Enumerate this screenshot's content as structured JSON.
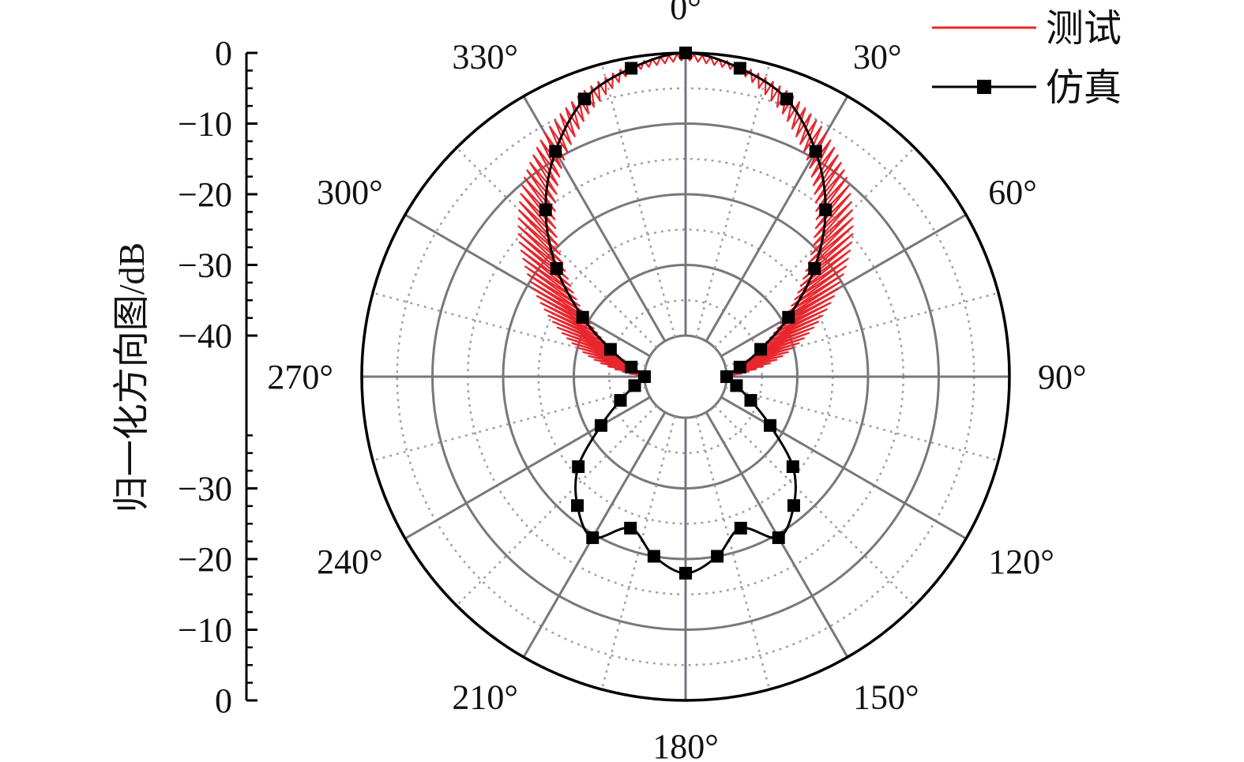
{
  "chart_data": {
    "type": "polar-line",
    "title": "",
    "radial_axis": {
      "label": "归一化方向图/dB",
      "range": [
        -40,
        0
      ],
      "ticks_top": [
        "0",
        "−10",
        "−20",
        "−30",
        "−40"
      ],
      "ticks_bottom": [
        "−30",
        "−20",
        "−10",
        "0"
      ],
      "grid": true
    },
    "angular_axis": {
      "zero_direction": "top",
      "direction": "clockwise",
      "ticks": [
        0,
        30,
        60,
        90,
        120,
        150,
        180,
        210,
        240,
        270,
        300,
        330
      ],
      "tick_labels": [
        "0°",
        "30°",
        "60°",
        "90°",
        "120°",
        "150°",
        "180°",
        "210°",
        "240°",
        "270°",
        "300°",
        "330°"
      ]
    },
    "legend": {
      "position": "top-right",
      "entries": [
        "测试",
        "仿真"
      ]
    },
    "series": [
      {
        "name": "测试",
        "color": "#e8262d",
        "style": "line",
        "note_pattern": "oscillating",
        "envelope_upper": [
          [
            270,
            -40
          ],
          [
            280,
            -33
          ],
          [
            290,
            -27
          ],
          [
            300,
            -21
          ],
          [
            310,
            -15
          ],
          [
            320,
            -10
          ],
          [
            330,
            -6
          ],
          [
            340,
            -3
          ],
          [
            350,
            -1
          ],
          [
            0,
            0
          ],
          [
            10,
            -1
          ],
          [
            20,
            -3
          ],
          [
            30,
            -6
          ],
          [
            40,
            -10
          ],
          [
            50,
            -15
          ],
          [
            60,
            -21
          ],
          [
            70,
            -27
          ],
          [
            80,
            -33
          ],
          [
            90,
            -40
          ]
        ],
        "envelope_lower": [
          [
            270,
            -40
          ],
          [
            280,
            -38
          ],
          [
            290,
            -35
          ],
          [
            300,
            -30
          ],
          [
            310,
            -24
          ],
          [
            320,
            -17
          ],
          [
            330,
            -11
          ],
          [
            340,
            -6
          ],
          [
            350,
            -2
          ],
          [
            0,
            -1
          ],
          [
            10,
            -2
          ],
          [
            20,
            -6
          ],
          [
            30,
            -11
          ],
          [
            40,
            -17
          ],
          [
            50,
            -24
          ],
          [
            60,
            -30
          ],
          [
            70,
            -35
          ],
          [
            80,
            -38
          ],
          [
            90,
            -40
          ]
        ]
      },
      {
        "name": "仿真",
        "color": "#000000",
        "style": "line-square-markers",
        "points": [
          [
            0,
            0
          ],
          [
            10,
            -1.5
          ],
          [
            20,
            -4
          ],
          [
            30,
            -9
          ],
          [
            40,
            -15
          ],
          [
            50,
            -22
          ],
          [
            60,
            -29
          ],
          [
            70,
            -34.5
          ],
          [
            80,
            -38
          ],
          [
            90,
            -40
          ],
          [
            100,
            -38.5
          ],
          [
            110,
            -36
          ],
          [
            120,
            -32
          ],
          [
            130,
            -26
          ],
          [
            140,
            -22
          ],
          [
            150,
            -19.5
          ],
          [
            160,
            -23
          ],
          [
            170,
            -20
          ],
          [
            180,
            -18
          ],
          [
            190,
            -20
          ],
          [
            200,
            -23
          ],
          [
            210,
            -19.5
          ],
          [
            220,
            -22
          ],
          [
            230,
            -26
          ],
          [
            240,
            -32
          ],
          [
            250,
            -36
          ],
          [
            260,
            -38.5
          ],
          [
            270,
            -40
          ],
          [
            280,
            -38
          ],
          [
            290,
            -34.5
          ],
          [
            300,
            -29
          ],
          [
            310,
            -22
          ],
          [
            320,
            -15
          ],
          [
            330,
            -9
          ],
          [
            340,
            -4
          ],
          [
            350,
            -1.5
          ]
        ]
      }
    ]
  }
}
